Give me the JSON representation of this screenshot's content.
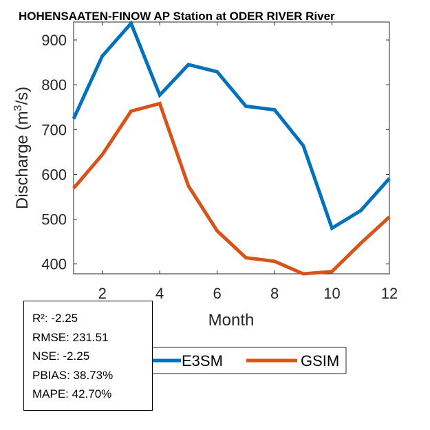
{
  "chart_data": {
    "type": "line",
    "title": "HOHENSAATEN-FINOW AP  Station at  ODER RIVER  River",
    "xlabel": "Month",
    "ylabel_prefix": "Discharge (m",
    "ylabel_sup": "3",
    "ylabel_suffix": "/s)",
    "xlim": [
      1,
      12
    ],
    "ylim": [
      378,
      940
    ],
    "xticks": [
      2,
      4,
      6,
      8,
      10,
      12
    ],
    "yticks": [
      400,
      500,
      600,
      700,
      800,
      900
    ],
    "x": [
      1,
      2,
      3,
      4,
      5,
      6,
      7,
      8,
      9,
      10,
      11,
      12
    ],
    "series": [
      {
        "name": "E3SM",
        "color": "#0072BD",
        "values": [
          724,
          864,
          937,
          777,
          845,
          829,
          752,
          744,
          664,
          480,
          519,
          591
        ]
      },
      {
        "name": "GSIM",
        "color": "#D95319",
        "values": [
          569,
          644,
          741,
          758,
          574,
          474,
          414,
          406,
          378,
          383,
          446,
          505
        ]
      }
    ],
    "legend_position": "bottom"
  },
  "stats": {
    "r2": "R²: -2.25",
    "rmse": "RMSE: 231.51",
    "nse": "NSE: -2.25",
    "pbias": "PBIAS: 38.73%",
    "mape": "MAPE: 42.70%"
  }
}
